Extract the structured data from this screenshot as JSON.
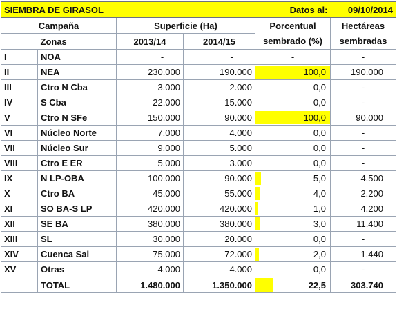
{
  "title": "SIEMBRA DE GIRASOL",
  "date_label": "Datos al:",
  "date_value": "09/10/2014",
  "headers": {
    "campana": "Campaña",
    "superficie": "Superficie (Ha)",
    "porcentual_line1": "Porcentual",
    "porcentual_line2": "sembrado (%)",
    "hectareas_line1": "Hectáreas",
    "hectareas_line2": "sembradas",
    "zonas": "Zonas",
    "y1": "2013/14",
    "y2": "2014/15"
  },
  "rows": [
    {
      "roman": "I",
      "zona": "NOA",
      "s13": "-",
      "s14": "-",
      "pct": "-",
      "pct_value": null,
      "ha": "-"
    },
    {
      "roman": "II",
      "zona": "NEA",
      "s13": "230.000",
      "s14": "190.000",
      "pct": "100,0",
      "pct_value": 100.0,
      "ha": "190.000"
    },
    {
      "roman": "III",
      "zona": "Ctro N Cba",
      "s13": "3.000",
      "s14": "2.000",
      "pct": "0,0",
      "pct_value": 0.0,
      "ha": "-"
    },
    {
      "roman": "IV",
      "zona": "S Cba",
      "s13": "22.000",
      "s14": "15.000",
      "pct": "0,0",
      "pct_value": 0.0,
      "ha": "-"
    },
    {
      "roman": "V",
      "zona": "Ctro N SFe",
      "s13": "150.000",
      "s14": "90.000",
      "pct": "100,0",
      "pct_value": 100.0,
      "ha": "90.000"
    },
    {
      "roman": "VI",
      "zona": "Núcleo Norte",
      "s13": "7.000",
      "s14": "4.000",
      "pct": "0,0",
      "pct_value": 0.0,
      "ha": "-"
    },
    {
      "roman": "VII",
      "zona": "Núcleo Sur",
      "s13": "9.000",
      "s14": "5.000",
      "pct": "0,0",
      "pct_value": 0.0,
      "ha": "-"
    },
    {
      "roman": "VIII",
      "zona": "Ctro E ER",
      "s13": "5.000",
      "s14": "3.000",
      "pct": "0,0",
      "pct_value": 0.0,
      "ha": "-"
    },
    {
      "roman": "IX",
      "zona": "N LP-OBA",
      "s13": "100.000",
      "s14": "90.000",
      "pct": "5,0",
      "pct_value": 5.0,
      "ha": "4.500"
    },
    {
      "roman": "X",
      "zona": "Ctro BA",
      "s13": "45.000",
      "s14": "55.000",
      "pct": "4,0",
      "pct_value": 4.0,
      "ha": "2.200"
    },
    {
      "roman": "XI",
      "zona": "SO BA-S LP",
      "s13": "420.000",
      "s14": "420.000",
      "pct": "1,0",
      "pct_value": 1.0,
      "ha": "4.200"
    },
    {
      "roman": "XII",
      "zona": "SE BA",
      "s13": "380.000",
      "s14": "380.000",
      "pct": "3,0",
      "pct_value": 3.0,
      "ha": "11.400"
    },
    {
      "roman": "XIII",
      "zona": "SL",
      "s13": "30.000",
      "s14": "20.000",
      "pct": "0,0",
      "pct_value": 0.0,
      "ha": "-"
    },
    {
      "roman": "XIV",
      "zona": "Cuenca Sal",
      "s13": "75.000",
      "s14": "72.000",
      "pct": "2,0",
      "pct_value": 2.0,
      "ha": "1.440"
    },
    {
      "roman": "XV",
      "zona": "Otras",
      "s13": "4.000",
      "s14": "4.000",
      "pct": "0,0",
      "pct_value": 0.0,
      "ha": "-"
    }
  ],
  "total": {
    "label": "TOTAL",
    "s13": "1.480.000",
    "s14": "1.350.000",
    "pct": "22,5",
    "pct_value": 22.5,
    "ha": "303.740"
  },
  "colors": {
    "highlight": "#ffff00",
    "border": "#9aa4b3",
    "text": "#111111"
  }
}
